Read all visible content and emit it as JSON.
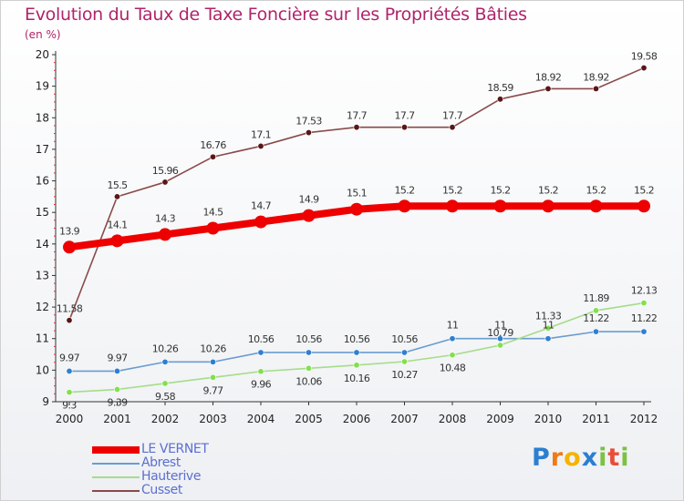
{
  "header": {
    "title": "Evolution du Taux de Taxe Foncière sur les Propriétés Bâties",
    "subtitle": "(en %)"
  },
  "chart_data": {
    "type": "line",
    "title": "Evolution du Taux de Taxe Foncière sur les Propriétés Bâties",
    "ylabel": "(en %)",
    "xlabel": "",
    "x": [
      "2000",
      "2001",
      "2002",
      "2003",
      "2004",
      "2005",
      "2006",
      "2007",
      "2008",
      "2009",
      "2010",
      "2011",
      "2012"
    ],
    "y_ticks": [
      "9",
      "10",
      "11",
      "12",
      "13",
      "14",
      "15",
      "16",
      "17",
      "18",
      "19",
      "20"
    ],
    "ylim": [
      9,
      20
    ],
    "grid": false,
    "legend_position": "bottom-left",
    "series": [
      {
        "name": "LE VERNET",
        "color": "#ee0000",
        "emphasis": true,
        "values": [
          13.9,
          14.1,
          14.3,
          14.5,
          14.7,
          14.9,
          15.1,
          15.2,
          15.2,
          15.2,
          15.2,
          15.2,
          15.2
        ],
        "labels": [
          "13.9",
          "14.1",
          "14.3",
          "14.5",
          "14.7",
          "14.9",
          "15.1",
          "15.2",
          "15.2",
          "15.2",
          "15.2",
          "15.2",
          "15.2"
        ]
      },
      {
        "name": "Abrest",
        "color": "#6a9ccf",
        "marker_color": "#2f7fd1",
        "values": [
          9.97,
          9.97,
          10.26,
          10.26,
          10.56,
          10.56,
          10.56,
          10.56,
          11,
          11,
          11,
          11.22,
          11.22
        ],
        "labels": [
          "9.97",
          "9.97",
          "10.26",
          "10.26",
          "10.56",
          "10.56",
          "10.56",
          "10.56",
          "11",
          "11",
          "11",
          "11.22",
          "11.22"
        ]
      },
      {
        "name": "Hauterive",
        "color": "#a6dc8a",
        "marker_color": "#82e04c",
        "values": [
          9.3,
          9.39,
          9.58,
          9.77,
          9.96,
          10.06,
          10.16,
          10.27,
          10.48,
          10.79,
          11.33,
          11.89,
          12.13
        ],
        "labels": [
          "9.3",
          "9.39",
          "9.58",
          "9.77",
          "9.96",
          "10.06",
          "10.16",
          "10.27",
          "10.48",
          "10.79",
          "11.33",
          "11.89",
          "12.13"
        ]
      },
      {
        "name": "Cusset",
        "color": "#8a4a4a",
        "marker_color": "#5a1616",
        "values": [
          11.58,
          15.5,
          15.96,
          16.76,
          17.1,
          17.53,
          17.7,
          17.7,
          17.7,
          18.59,
          18.92,
          18.92,
          19.58
        ],
        "labels": [
          "11.58",
          "15.5",
          "15.96",
          "16.76",
          "17.1",
          "17.53",
          "17.7",
          "17.7",
          "17.7",
          "18.59",
          "18.92",
          "18.92",
          "19.58"
        ]
      }
    ]
  },
  "legend": {
    "items": [
      {
        "label": "LE VERNET",
        "color": "#ee0000"
      },
      {
        "label": "Abrest",
        "color": "#6a9ccf"
      },
      {
        "label": "Hauterive",
        "color": "#a6dc8a"
      },
      {
        "label": "Cusset",
        "color": "#8a4a4a"
      }
    ]
  },
  "logo": {
    "letters": [
      "P",
      "r",
      "o",
      "x",
      "i",
      "t",
      "i"
    ],
    "colors": [
      "#2a7fd1",
      "#f07a16",
      "#f5b400",
      "#2a7fd1",
      "#7cc142",
      "#e94d3a",
      "#7cc142"
    ]
  }
}
